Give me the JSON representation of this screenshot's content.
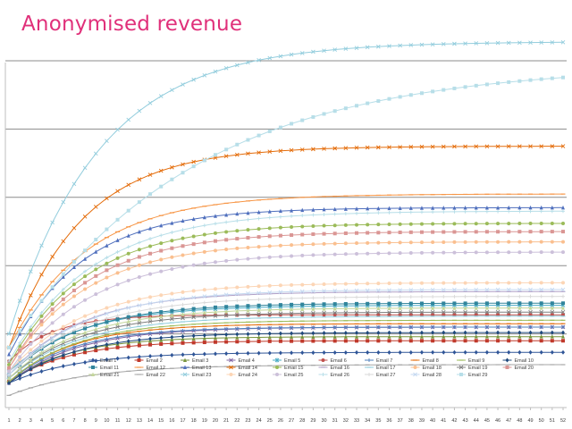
{
  "chart_data": {
    "type": "line",
    "title": "Anonymised revenue",
    "xlabel": "",
    "ylabel": "",
    "x": [
      1,
      2,
      3,
      4,
      5,
      6,
      7,
      8,
      9,
      10,
      11,
      12,
      13,
      14,
      15,
      16,
      17,
      18,
      19,
      20,
      21,
      22,
      23,
      24,
      25,
      26,
      27,
      28,
      29,
      30,
      31,
      32,
      33,
      34,
      35,
      36,
      37,
      38,
      39,
      40,
      41,
      42,
      43,
      44,
      45,
      46,
      47,
      48,
      49,
      50,
      51,
      52
    ],
    "ylim": [
      0,
      5.5
    ],
    "gridlines": [
      1,
      2,
      3,
      4,
      5
    ],
    "grid": true,
    "legend_position": "bottom",
    "series": [
      {
        "name": "Email 1",
        "final": 0.73,
        "k": 0.16,
        "start": 0.28,
        "color": "#2f5597",
        "marker": "diamond"
      },
      {
        "name": "Email 2",
        "final": 0.9,
        "k": 0.18,
        "start": 0.3,
        "color": "#c0392b",
        "marker": "square"
      },
      {
        "name": "Email 3",
        "final": 0.96,
        "k": 0.18,
        "start": 0.3,
        "color": "#77933c",
        "marker": "triangle"
      },
      {
        "name": "Email 4",
        "final": 1.1,
        "k": 0.16,
        "start": 0.28,
        "color": "#8064a2",
        "marker": "x"
      },
      {
        "name": "Email 5",
        "final": 1.42,
        "k": 0.15,
        "start": 0.45,
        "color": "#4bacc6",
        "marker": "star"
      },
      {
        "name": "Email 6",
        "final": 1.28,
        "k": 0.25,
        "start": 0.6,
        "color": "#c0504d",
        "marker": "circle"
      },
      {
        "name": "Email 7",
        "final": 1.1,
        "k": 0.17,
        "start": 0.3,
        "color": "#4f81bd",
        "marker": "plus"
      },
      {
        "name": "Email 8",
        "final": 1.15,
        "k": 0.17,
        "start": 0.3,
        "color": "#e46c0a",
        "marker": "dash"
      },
      {
        "name": "Email 9",
        "final": 1.2,
        "k": 0.16,
        "start": 0.3,
        "color": "#9bbb59",
        "marker": "dash"
      },
      {
        "name": "Email 10",
        "final": 1.02,
        "k": 0.16,
        "start": 0.28,
        "color": "#1f497d",
        "marker": "diamond"
      },
      {
        "name": "Email 11",
        "final": 1.45,
        "k": 0.15,
        "start": 0.4,
        "color": "#31859c",
        "marker": "square"
      },
      {
        "name": "Email 12",
        "final": 3.05,
        "k": 0.14,
        "start": 0.8,
        "color": "#f79646",
        "marker": "dash"
      },
      {
        "name": "Email 13",
        "final": 2.85,
        "k": 0.15,
        "start": 0.7,
        "color": "#4f6fbd",
        "marker": "triangle"
      },
      {
        "name": "Email 14",
        "final": 3.75,
        "k": 0.15,
        "start": 0.8,
        "color": "#e46c0a",
        "marker": "x"
      },
      {
        "name": "Email 15",
        "final": 2.62,
        "k": 0.14,
        "start": 0.55,
        "color": "#9bbb59",
        "marker": "circle"
      },
      {
        "name": "Email 16",
        "final": 1.62,
        "k": 0.15,
        "start": 0.4,
        "color": "#b1a0c7",
        "marker": "dash"
      },
      {
        "name": "Email 17",
        "final": 1.26,
        "k": 0.15,
        "start": 0.35,
        "color": "#92cddc",
        "marker": "dash"
      },
      {
        "name": "Email 18",
        "final": 2.35,
        "k": 0.14,
        "start": 0.5,
        "color": "#fabf8f",
        "marker": "circle"
      },
      {
        "name": "Email 19",
        "final": 1.32,
        "k": 0.15,
        "start": 0.35,
        "color": "#7f7f7f",
        "marker": "x"
      },
      {
        "name": "Email 20",
        "final": 2.5,
        "k": 0.14,
        "start": 0.5,
        "color": "#da9694",
        "marker": "square"
      },
      {
        "name": "Email 21",
        "final": 1.38,
        "k": 0.15,
        "start": 0.35,
        "color": "#c3d69b",
        "marker": "triangle"
      },
      {
        "name": "Email 22",
        "final": 0.55,
        "k": 0.14,
        "start": 0.1,
        "color": "#a6a6a6",
        "marker": "dash"
      },
      {
        "name": "Email 23",
        "final": 5.28,
        "k": 0.12,
        "start": 1.0,
        "color": "#93cddd",
        "marker": "x"
      },
      {
        "name": "Email 24",
        "final": 1.75,
        "k": 0.14,
        "start": 0.45,
        "color": "#fcd5b5",
        "marker": "circle"
      },
      {
        "name": "Email 25",
        "final": 2.2,
        "k": 0.13,
        "start": 0.45,
        "color": "#ccc0da",
        "marker": "circle"
      },
      {
        "name": "Email 26",
        "final": 2.8,
        "k": 0.13,
        "start": 0.6,
        "color": "#b7dee8",
        "marker": "plus"
      },
      {
        "name": "Email 27",
        "final": 1.55,
        "k": 0.14,
        "start": 0.4,
        "color": "#d9d9d9",
        "marker": "plus"
      },
      {
        "name": "Email 28",
        "final": 1.65,
        "k": 0.14,
        "start": 0.4,
        "color": "#c5d9f1",
        "marker": "x"
      },
      {
        "name": "Email 29",
        "final": 4.95,
        "k": 0.06,
        "start": 0.8,
        "color": "#b7dee8",
        "marker": "square"
      }
    ]
  }
}
